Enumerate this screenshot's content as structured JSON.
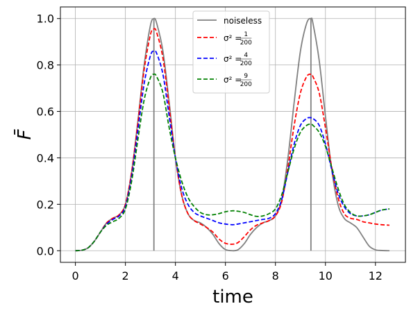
{
  "chart_data": {
    "type": "line",
    "xlabel": "time",
    "ylabel": "F̄",
    "xlim": [
      -0.6,
      13.2
    ],
    "ylim": [
      -0.05,
      1.05
    ],
    "xticks": [
      0,
      2,
      4,
      6,
      8,
      10,
      12
    ],
    "yticks": [
      0.0,
      0.2,
      0.4,
      0.6,
      0.8,
      1.0
    ],
    "xtick_labels": [
      "0",
      "2",
      "4",
      "6",
      "8",
      "10",
      "12"
    ],
    "ytick_labels": [
      "0.0",
      "0.2",
      "0.4",
      "0.6",
      "0.8",
      "1.0"
    ],
    "grid": true,
    "legend_position": "top-center",
    "vertical_lines": [
      {
        "x": 3.14,
        "y0": 0.0,
        "y1": 1.0,
        "color": "#808080"
      },
      {
        "x": 9.42,
        "y0": 0.0,
        "y1": 1.0,
        "color": "#808080"
      }
    ],
    "series": [
      {
        "name": "noiseless",
        "legend": {
          "prefix": "noiseless"
        },
        "color": "#808080",
        "dash": "solid",
        "x": [
          0,
          0.25,
          0.5,
          0.75,
          1.0,
          1.25,
          1.5,
          1.75,
          2.0,
          2.25,
          2.5,
          2.75,
          3.0,
          3.14,
          3.25,
          3.5,
          3.75,
          4.0,
          4.25,
          4.5,
          4.75,
          5.0,
          5.25,
          5.5,
          5.75,
          6.0,
          6.28,
          6.5,
          6.75,
          7.0,
          7.25,
          7.5,
          7.75,
          8.0,
          8.25,
          8.5,
          8.75,
          9.0,
          9.25,
          9.42,
          9.5,
          9.75,
          10.0,
          10.25,
          10.5,
          10.75,
          11.0,
          11.25,
          11.5,
          11.75,
          12.0,
          12.25,
          12.56
        ],
        "values": [
          0.0,
          0.002,
          0.012,
          0.04,
          0.08,
          0.12,
          0.14,
          0.155,
          0.2,
          0.34,
          0.56,
          0.8,
          0.97,
          1.0,
          0.98,
          0.86,
          0.64,
          0.4,
          0.24,
          0.16,
          0.13,
          0.12,
          0.1,
          0.07,
          0.03,
          0.005,
          0.0,
          0.004,
          0.03,
          0.07,
          0.1,
          0.12,
          0.13,
          0.15,
          0.22,
          0.4,
          0.64,
          0.86,
          0.98,
          1.0,
          0.98,
          0.82,
          0.58,
          0.35,
          0.2,
          0.14,
          0.12,
          0.1,
          0.06,
          0.02,
          0.004,
          0.001,
          0.0
        ]
      },
      {
        "name": "σ² = 1/200",
        "legend": {
          "prefix": "σ² = ",
          "num": "1",
          "den": "200"
        },
        "color": "#ff0000",
        "dash": "dashed",
        "x": [
          0,
          0.25,
          0.5,
          0.75,
          1.0,
          1.25,
          1.5,
          1.75,
          2.0,
          2.25,
          2.5,
          2.75,
          3.0,
          3.14,
          3.25,
          3.5,
          3.75,
          4.0,
          4.25,
          4.5,
          4.75,
          5.0,
          5.25,
          5.5,
          5.75,
          6.0,
          6.28,
          6.5,
          6.75,
          7.0,
          7.25,
          7.5,
          7.75,
          8.0,
          8.25,
          8.5,
          8.75,
          9.0,
          9.25,
          9.42,
          9.5,
          9.75,
          10.0,
          10.25,
          10.5,
          10.75,
          11.0,
          11.25,
          11.5,
          11.75,
          12.0,
          12.25,
          12.56
        ],
        "values": [
          0.0,
          0.002,
          0.012,
          0.04,
          0.08,
          0.12,
          0.14,
          0.155,
          0.2,
          0.34,
          0.55,
          0.78,
          0.93,
          0.955,
          0.94,
          0.83,
          0.62,
          0.4,
          0.24,
          0.16,
          0.13,
          0.115,
          0.1,
          0.08,
          0.05,
          0.032,
          0.028,
          0.035,
          0.06,
          0.09,
          0.11,
          0.12,
          0.13,
          0.15,
          0.21,
          0.36,
          0.54,
          0.68,
          0.75,
          0.76,
          0.75,
          0.68,
          0.53,
          0.36,
          0.23,
          0.16,
          0.14,
          0.135,
          0.125,
          0.12,
          0.115,
          0.112,
          0.11
        ]
      },
      {
        "name": "σ² = 4/200",
        "legend": {
          "prefix": "σ² = ",
          "num": "4",
          "den": "200"
        },
        "color": "#0000ff",
        "dash": "dashed",
        "x": [
          0,
          0.25,
          0.5,
          0.75,
          1.0,
          1.25,
          1.5,
          1.75,
          2.0,
          2.25,
          2.5,
          2.75,
          3.0,
          3.14,
          3.25,
          3.5,
          3.75,
          4.0,
          4.25,
          4.5,
          4.75,
          5.0,
          5.25,
          5.5,
          5.75,
          6.0,
          6.28,
          6.5,
          6.75,
          7.0,
          7.25,
          7.5,
          7.75,
          8.0,
          8.25,
          8.5,
          8.75,
          9.0,
          9.25,
          9.42,
          9.5,
          9.75,
          10.0,
          10.25,
          10.5,
          10.75,
          11.0,
          11.25,
          11.5,
          11.75,
          12.0,
          12.25,
          12.56
        ],
        "values": [
          0.0,
          0.002,
          0.012,
          0.04,
          0.08,
          0.115,
          0.135,
          0.15,
          0.19,
          0.32,
          0.52,
          0.72,
          0.84,
          0.86,
          0.85,
          0.76,
          0.58,
          0.4,
          0.27,
          0.2,
          0.165,
          0.15,
          0.14,
          0.13,
          0.12,
          0.115,
          0.112,
          0.115,
          0.12,
          0.125,
          0.13,
          0.135,
          0.14,
          0.16,
          0.22,
          0.34,
          0.46,
          0.54,
          0.57,
          0.573,
          0.57,
          0.54,
          0.46,
          0.35,
          0.25,
          0.19,
          0.16,
          0.15,
          0.15,
          0.155,
          0.165,
          0.175,
          0.18
        ]
      },
      {
        "name": "σ² = 9/200",
        "legend": {
          "prefix": "σ² = ",
          "num": "9",
          "den": "200"
        },
        "color": "#008000",
        "dash": "dashed",
        "x": [
          0,
          0.25,
          0.5,
          0.75,
          1.0,
          1.25,
          1.5,
          1.75,
          2.0,
          2.25,
          2.5,
          2.75,
          3.0,
          3.14,
          3.25,
          3.5,
          3.75,
          4.0,
          4.25,
          4.5,
          4.75,
          5.0,
          5.25,
          5.5,
          5.75,
          6.0,
          6.28,
          6.5,
          6.75,
          7.0,
          7.25,
          7.5,
          7.75,
          8.0,
          8.25,
          8.5,
          8.75,
          9.0,
          9.25,
          9.42,
          9.5,
          9.75,
          10.0,
          10.25,
          10.5,
          10.75,
          11.0,
          11.25,
          11.5,
          11.75,
          12.0,
          12.25,
          12.56
        ],
        "values": [
          0.0,
          0.002,
          0.012,
          0.04,
          0.08,
          0.11,
          0.125,
          0.14,
          0.18,
          0.3,
          0.48,
          0.65,
          0.745,
          0.76,
          0.75,
          0.68,
          0.53,
          0.4,
          0.3,
          0.23,
          0.19,
          0.165,
          0.155,
          0.155,
          0.16,
          0.168,
          0.172,
          0.17,
          0.165,
          0.155,
          0.148,
          0.15,
          0.16,
          0.18,
          0.24,
          0.34,
          0.44,
          0.51,
          0.54,
          0.545,
          0.54,
          0.51,
          0.45,
          0.36,
          0.27,
          0.2,
          0.165,
          0.15,
          0.15,
          0.155,
          0.165,
          0.175,
          0.18
        ]
      }
    ]
  }
}
